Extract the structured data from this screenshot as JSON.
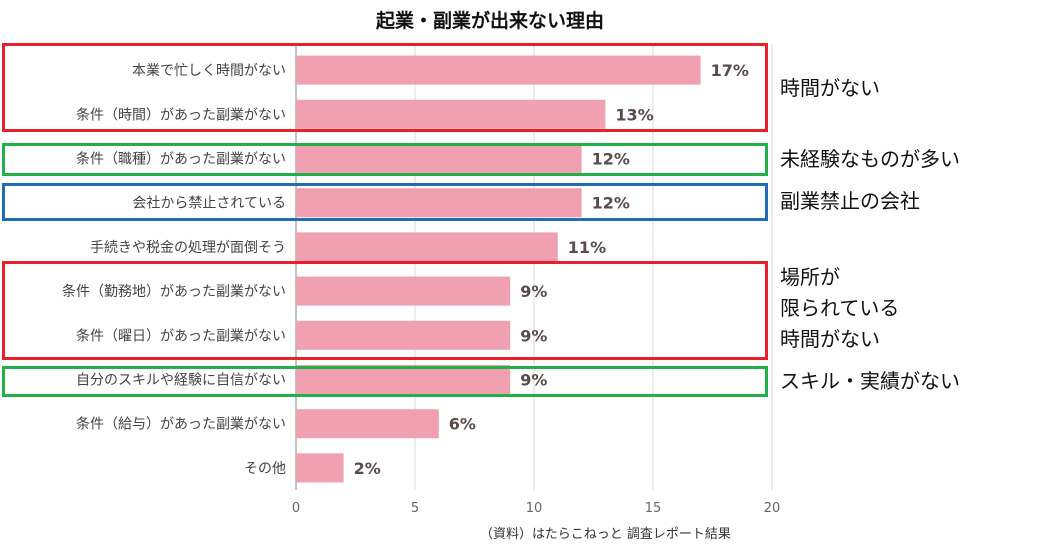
{
  "chart_data": {
    "type": "bar",
    "orientation": "horizontal",
    "title": "起業・副業が出来ない理由",
    "categories": [
      "本業で忙しく時間がない",
      "条件（時間）があった副業がない",
      "条件（職種）があった副業がない",
      "会社から禁止されている",
      "手続きや税金の処理が面倒そう",
      "条件（勤務地）があった副業がない",
      "条件（曜日）があった副業がない",
      "自分のスキルや経験に自信がない",
      "条件（給与）があった副業がない",
      "その他"
    ],
    "values": [
      17,
      13,
      12,
      12,
      11,
      9,
      9,
      9,
      6,
      2
    ],
    "value_labels": [
      "17%",
      "13%",
      "12%",
      "12%",
      "11%",
      "9%",
      "9%",
      "9%",
      "6%",
      "2%"
    ],
    "xlim": [
      0,
      20
    ],
    "xticks": [
      "0",
      "5",
      "10",
      "15",
      "20"
    ],
    "grid": true,
    "bar_color": "#f0a0b0"
  },
  "source_note": "（資料）はたらこねっと 調査レポート結果",
  "annotations": [
    {
      "text": "時間がない",
      "color": "#e8202a"
    },
    {
      "text": "未経験なものが多い",
      "color": "#22b04a"
    },
    {
      "text": "副業禁止の会社",
      "color": "#1f6eb5"
    },
    {
      "text": "場所が\n限られている\n時間がない",
      "color": "#e8202a"
    },
    {
      "text": "スキル・実績がない",
      "color": "#22b04a"
    }
  ]
}
